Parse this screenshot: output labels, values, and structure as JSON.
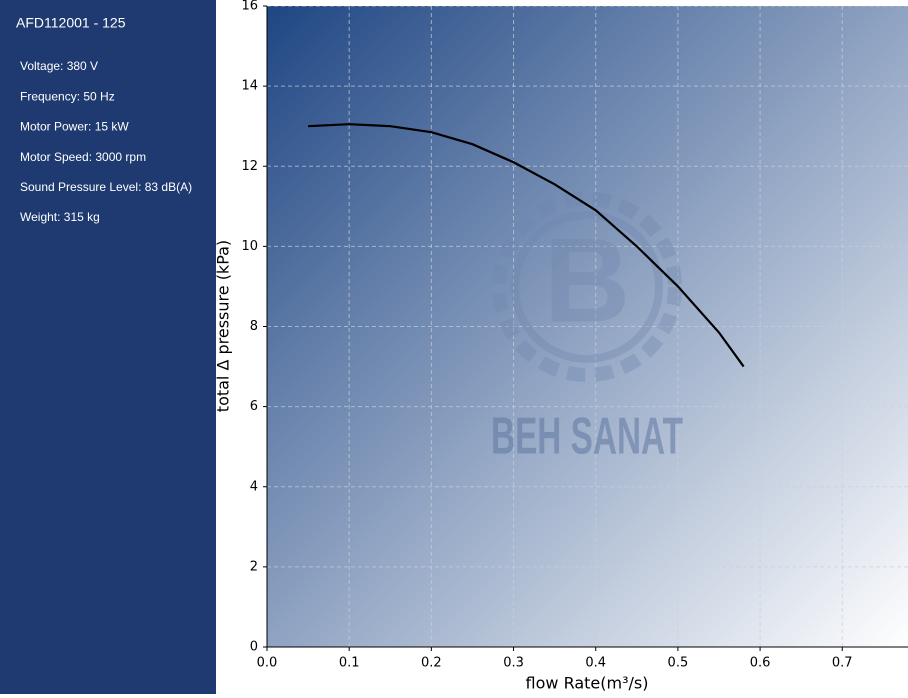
{
  "sidebar": {
    "title": "AFD112001 - 125",
    "specs": [
      "Voltage: 380 V",
      "Frequency: 50 Hz",
      "Motor Power: 15 kW",
      "Motor Speed: 3000 rpm",
      "Sound Pressure Level: 83 dB(A)",
      "Weight: 315 kg"
    ]
  },
  "chart_data": {
    "type": "line",
    "x_label": "flow Rate(m³/s)",
    "y_label": "total Δ pressure (kPa)",
    "watermark": "BEH SANAT",
    "x": [
      0.05,
      0.1,
      0.15,
      0.2,
      0.25,
      0.3,
      0.35,
      0.4,
      0.45,
      0.5,
      0.55,
      0.58
    ],
    "series": [
      {
        "color": "#000000",
        "values": [
          13.0,
          13.05,
          13.0,
          12.85,
          12.55,
          12.1,
          11.55,
          10.9,
          10.0,
          9.0,
          7.85,
          7.0
        ]
      }
    ],
    "xlim": [
      0,
      0.78
    ],
    "ylim": [
      0,
      16
    ],
    "xticks": [
      {
        "value": 0,
        "label": "0.0"
      },
      0.1,
      0.2,
      0.3,
      0.4,
      0.5,
      0.6,
      0.7
    ],
    "yticks": [
      0,
      2,
      4,
      6,
      8,
      10,
      12,
      14,
      16
    ],
    "grid": true
  }
}
